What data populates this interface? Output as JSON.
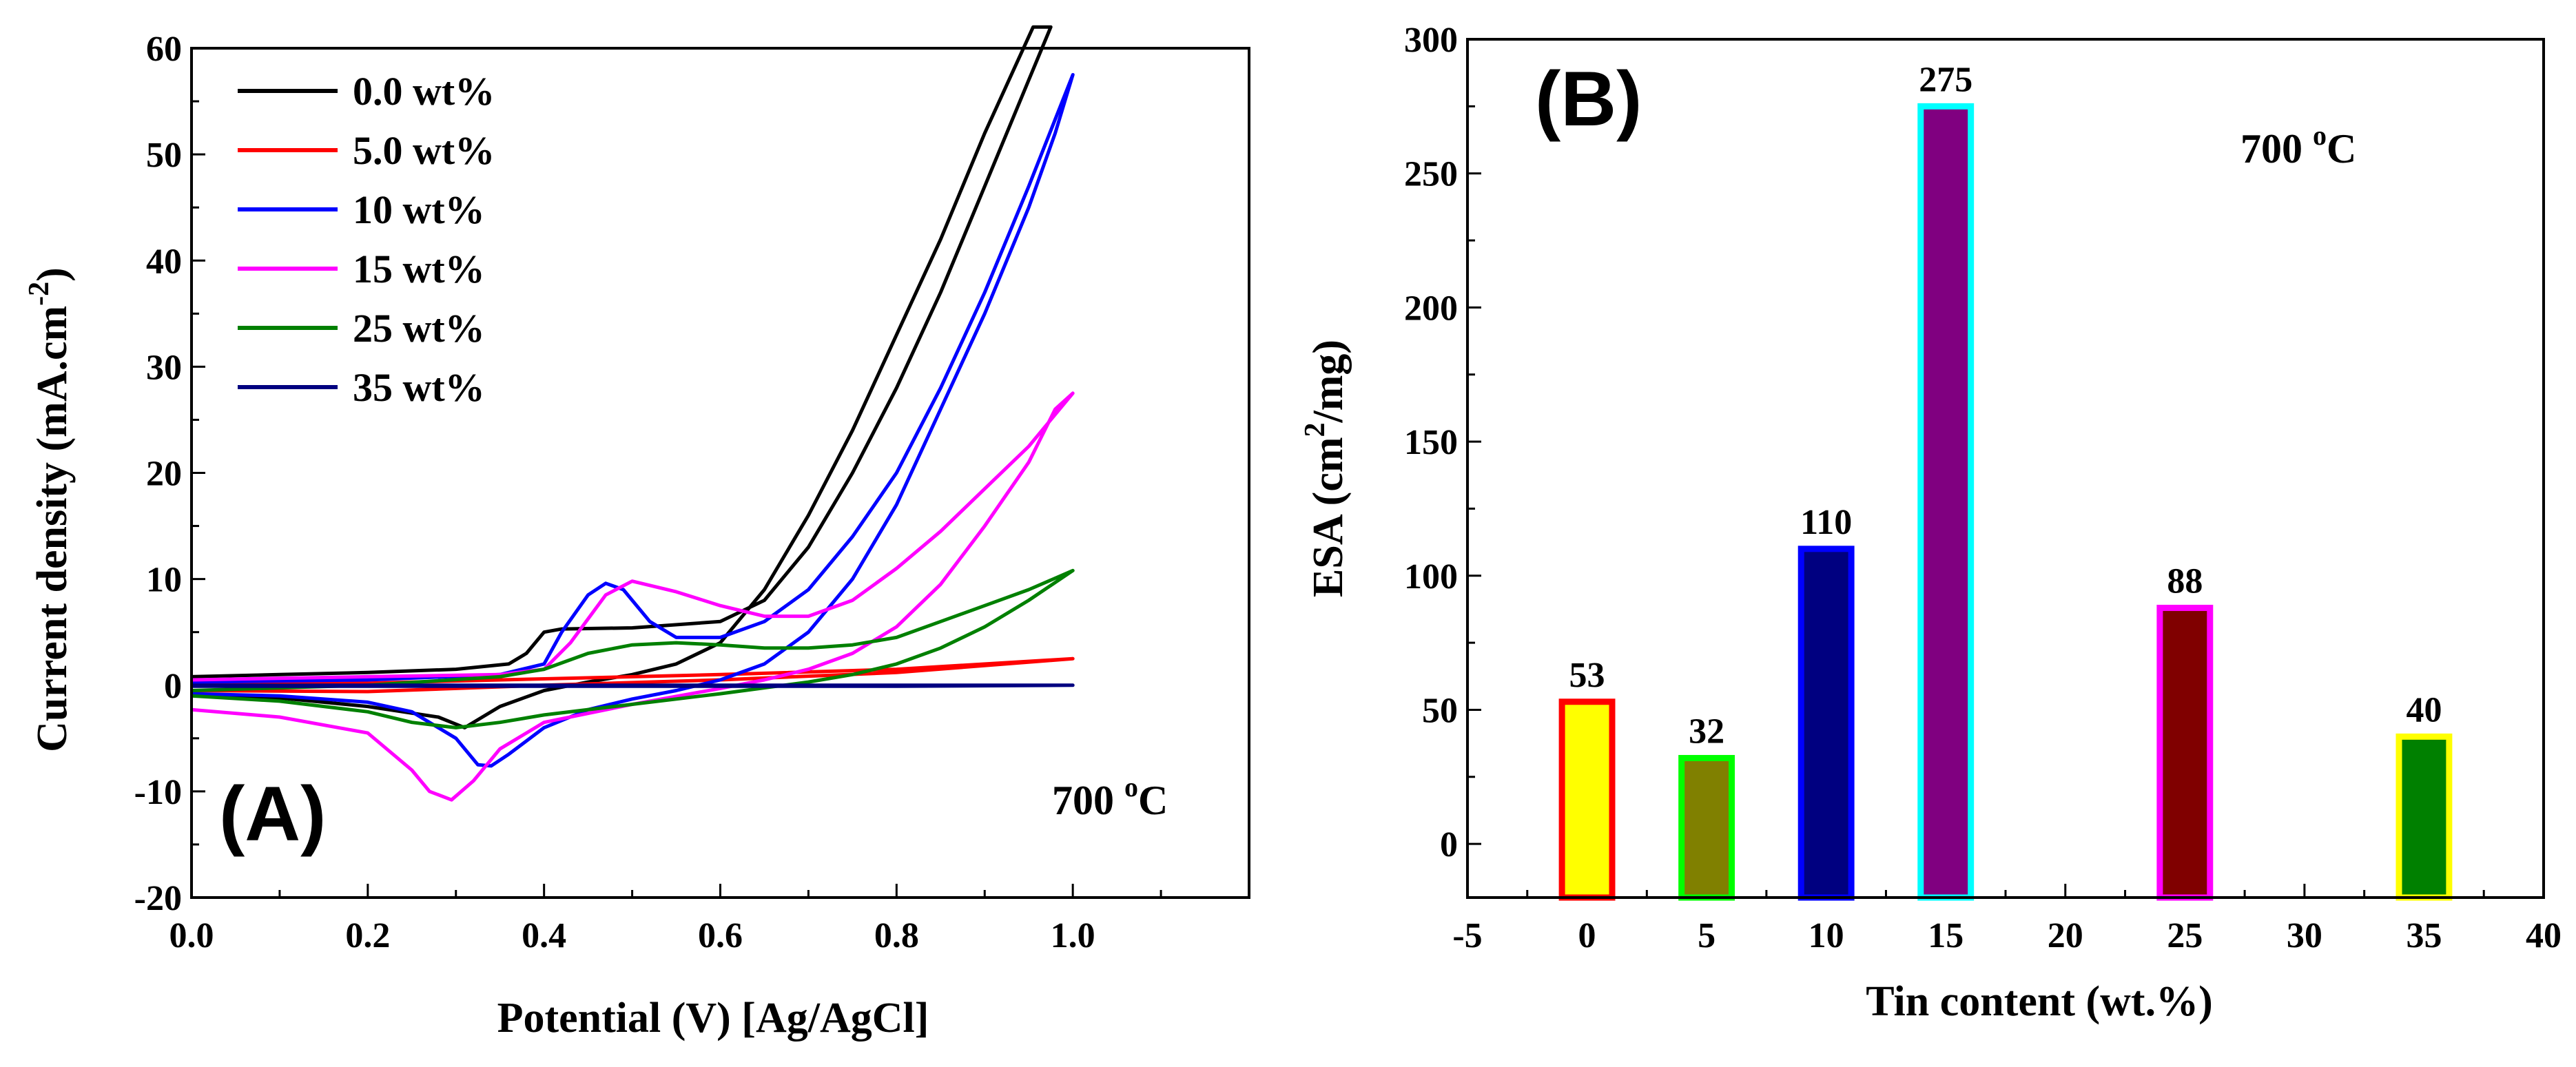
{
  "chart_data": [
    {
      "panel": "(A)",
      "type": "line",
      "annotation_main": "700 ",
      "annotation_sup": "o",
      "annotation_unit": "C",
      "xlabel": "Potential (V) [Ag/AgCl]",
      "ylabel_main": "Current density (mA.cm",
      "ylabel_sup": "-2",
      "ylabel_close": ")",
      "xlim": [
        0.0,
        1.2
      ],
      "ylim": [
        -20,
        60
      ],
      "xticks": [
        "0.0",
        "0.2",
        "0.4",
        "0.6",
        "0.8",
        "1.0"
      ],
      "yticks": [
        "-20",
        "-10",
        "0",
        "10",
        "20",
        "30",
        "40",
        "50",
        "60"
      ],
      "legend_position": "top-left",
      "series": [
        {
          "name": "0.0 wt%",
          "color": "#000000",
          "x": [
            0.0,
            0.1,
            0.2,
            0.3,
            0.36,
            0.38,
            0.4,
            0.42,
            0.5,
            0.6,
            0.65,
            0.7,
            0.75,
            0.8,
            0.85,
            0.9,
            0.95,
            0.975,
            0.955,
            0.9,
            0.85,
            0.8,
            0.75,
            0.7,
            0.65,
            0.6,
            0.55,
            0.5,
            0.45,
            0.4,
            0.35,
            0.31,
            0.28,
            0.2,
            0.1,
            0.0
          ],
          "y": [
            0.8,
            1.0,
            1.2,
            1.5,
            2.0,
            3.0,
            5.0,
            5.3,
            5.4,
            6.0,
            8.0,
            13.0,
            20.0,
            28.0,
            37.0,
            47.0,
            57.0,
            62.0,
            62.0,
            52.0,
            42.0,
            33.0,
            24.0,
            16.0,
            9.0,
            4.0,
            2.0,
            1.0,
            0.3,
            -0.5,
            -2.0,
            -4.0,
            -3.0,
            -2.0,
            -1.2,
            -0.8
          ]
        },
        {
          "name": "5.0 wt%",
          "color": "#ff0000",
          "x": [
            0.0,
            0.2,
            0.4,
            0.6,
            0.8,
            1.0,
            0.8,
            0.6,
            0.4,
            0.2,
            0.0
          ],
          "y": [
            0.0,
            0.2,
            0.6,
            1.0,
            1.5,
            2.5,
            1.2,
            0.5,
            0.0,
            -0.6,
            -0.5
          ]
        },
        {
          "name": "10 wt%",
          "color": "#0000ff",
          "x": [
            0.0,
            0.2,
            0.35,
            0.4,
            0.42,
            0.45,
            0.47,
            0.49,
            0.52,
            0.55,
            0.6,
            0.65,
            0.7,
            0.75,
            0.8,
            0.85,
            0.9,
            0.95,
            1.0,
            0.98,
            0.95,
            0.9,
            0.85,
            0.8,
            0.75,
            0.7,
            0.65,
            0.6,
            0.55,
            0.5,
            0.45,
            0.4,
            0.36,
            0.34,
            0.325,
            0.3,
            0.25,
            0.2,
            0.1,
            0.0
          ],
          "y": [
            0.3,
            0.5,
            1.0,
            2.0,
            5.0,
            8.5,
            9.6,
            9.0,
            6.0,
            4.5,
            4.5,
            6.0,
            9.0,
            14.0,
            20.0,
            28.0,
            37.0,
            47.0,
            57.5,
            52.0,
            45.0,
            35.0,
            26.0,
            17.0,
            10.0,
            5.0,
            2.0,
            0.5,
            -0.5,
            -1.3,
            -2.3,
            -4.0,
            -6.5,
            -7.6,
            -7.5,
            -5.0,
            -2.5,
            -1.6,
            -1.0,
            -0.8
          ]
        },
        {
          "name": "15 wt%",
          "color": "#ff00ff",
          "x": [
            0.0,
            0.2,
            0.35,
            0.4,
            0.43,
            0.47,
            0.5,
            0.55,
            0.6,
            0.65,
            0.7,
            0.75,
            0.8,
            0.85,
            0.9,
            0.95,
            1.0,
            0.98,
            0.95,
            0.9,
            0.85,
            0.8,
            0.75,
            0.7,
            0.65,
            0.6,
            0.5,
            0.4,
            0.35,
            0.32,
            0.295,
            0.27,
            0.25,
            0.2,
            0.1,
            0.0
          ],
          "y": [
            0.5,
            0.8,
            1.0,
            1.5,
            4.0,
            8.5,
            9.8,
            8.8,
            7.5,
            6.5,
            6.5,
            8.0,
            11.0,
            14.5,
            18.5,
            22.5,
            27.5,
            26.0,
            21.0,
            15.0,
            9.5,
            5.5,
            3.0,
            1.5,
            0.5,
            -0.3,
            -1.8,
            -3.5,
            -6.0,
            -9.0,
            -10.8,
            -10.0,
            -8.0,
            -4.5,
            -3.0,
            -2.3
          ]
        },
        {
          "name": "25 wt%",
          "color": "#008000",
          "x": [
            0.0,
            0.2,
            0.35,
            0.4,
            0.45,
            0.5,
            0.55,
            0.6,
            0.65,
            0.7,
            0.75,
            0.8,
            0.85,
            0.9,
            0.95,
            1.0,
            0.95,
            0.9,
            0.85,
            0.8,
            0.75,
            0.7,
            0.6,
            0.5,
            0.4,
            0.35,
            0.3,
            0.25,
            0.2,
            0.1,
            0.0
          ],
          "y": [
            -0.5,
            0.0,
            0.8,
            1.5,
            3.0,
            3.8,
            4.0,
            3.8,
            3.5,
            3.5,
            3.8,
            4.5,
            6.0,
            7.5,
            9.0,
            10.8,
            8.0,
            5.5,
            3.5,
            2.0,
            1.0,
            0.3,
            -0.8,
            -1.8,
            -2.8,
            -3.5,
            -4.0,
            -3.5,
            -2.5,
            -1.5,
            -1.0
          ]
        },
        {
          "name": "35 wt%",
          "color": "#000080",
          "x": [
            0.0,
            0.2,
            0.4,
            0.6,
            0.8,
            1.0,
            0.8,
            0.6,
            0.4,
            0.2,
            0.0
          ],
          "y": [
            0.0,
            0.0,
            0.0,
            0.0,
            0.0,
            0.0,
            -0.1,
            -0.1,
            -0.1,
            -0.1,
            -0.1
          ]
        }
      ]
    },
    {
      "panel": "(B)",
      "type": "bar",
      "annotation_main": "700 ",
      "annotation_sup": "o",
      "annotation_unit": "C",
      "xlabel": "Tin content (wt.%)",
      "ylabel_main": "ESA (cm",
      "ylabel_sup": "2",
      "ylabel_close": "/mg)",
      "xlim": [
        -5,
        40
      ],
      "ylim": [
        -20,
        300
      ],
      "xticks": [
        "-5",
        "0",
        "5",
        "10",
        "15",
        "20",
        "25",
        "30",
        "35",
        "40"
      ],
      "yticks": [
        "0",
        "50",
        "100",
        "150",
        "200",
        "250",
        "300"
      ],
      "bars": [
        {
          "x": 0,
          "value": 53,
          "label": "53",
          "fill": "#ffff00",
          "edge": "#ff0000"
        },
        {
          "x": 5,
          "value": 32,
          "label": "32",
          "fill": "#808000",
          "edge": "#00ff00"
        },
        {
          "x": 10,
          "value": 110,
          "label": "110",
          "fill": "#000080",
          "edge": "#0000ff"
        },
        {
          "x": 15,
          "value": 275,
          "label": "275",
          "fill": "#800080",
          "edge": "#00ffff"
        },
        {
          "x": 25,
          "value": 88,
          "label": "88",
          "fill": "#800000",
          "edge": "#ff00ff"
        },
        {
          "x": 35,
          "value": 40,
          "label": "40",
          "fill": "#008000",
          "edge": "#ffff00"
        }
      ]
    }
  ]
}
